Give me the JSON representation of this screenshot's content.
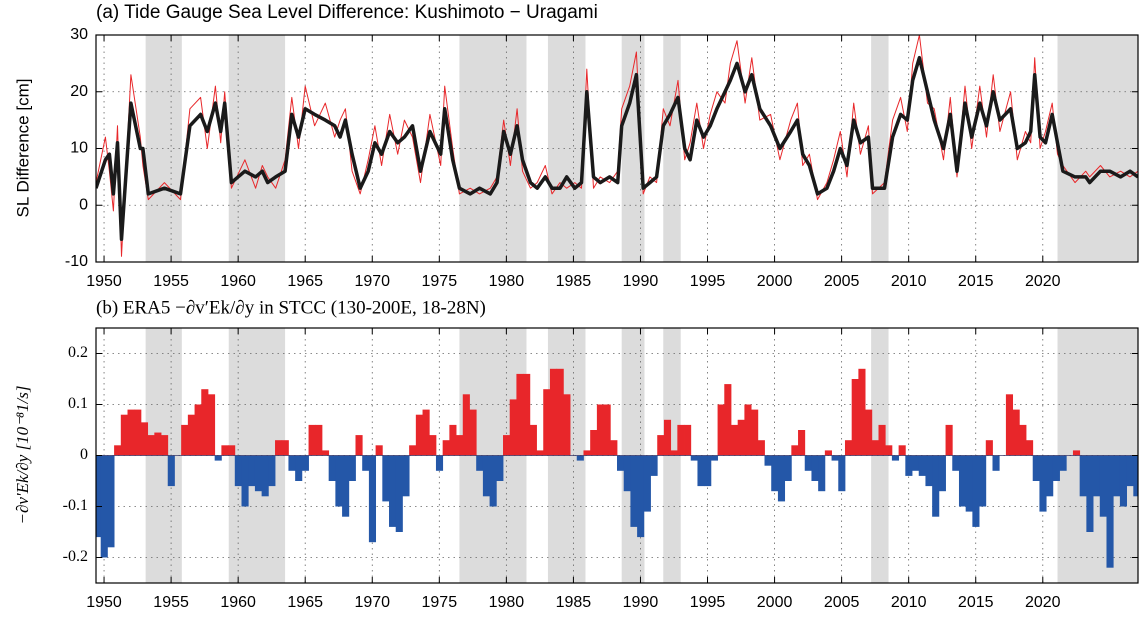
{
  "chart_data": [
    {
      "type": "line",
      "title": "(a) Tide Gauge Sea Level Difference: Kushimoto − Uragami",
      "y_label": "SL Difference [cm]",
      "xlim": [
        1949.4,
        2027.1
      ],
      "ylim": [
        -10,
        30
      ],
      "xticks": [
        1950,
        1955,
        1960,
        1965,
        1970,
        1975,
        1980,
        1985,
        1990,
        1995,
        2000,
        2005,
        2010,
        2015,
        2020
      ],
      "yticks": [
        -10,
        0,
        10,
        20,
        30
      ],
      "grid": true,
      "shade_color": "#dcdcdc",
      "shaded_periods": [
        [
          1953.1,
          1955.8
        ],
        [
          1959.3,
          1963.5
        ],
        [
          1976.5,
          1981.5
        ],
        [
          1983.1,
          1985.9
        ],
        [
          1988.6,
          1990.3
        ],
        [
          1991.7,
          1993.0
        ],
        [
          2007.2,
          2008.5
        ],
        [
          2021.1,
          2027.1
        ]
      ],
      "x": [
        1949.4,
        1950.1,
        1950.4,
        1950.7,
        1951.0,
        1951.3,
        1952.0,
        1952.7,
        1952.9,
        1953.3,
        1954.5,
        1955.7,
        1956.4,
        1957.2,
        1957.7,
        1958.3,
        1958.7,
        1959.0,
        1959.5,
        1960.5,
        1961.3,
        1961.8,
        1962.2,
        1962.8,
        1963.5,
        1964.0,
        1964.5,
        1965.0,
        1965.7,
        1966.5,
        1967.2,
        1967.6,
        1968.0,
        1968.5,
        1969.1,
        1969.7,
        1970.2,
        1970.7,
        1971.3,
        1971.9,
        1972.4,
        1973.0,
        1973.6,
        1974.3,
        1975.1,
        1975.4,
        1976.0,
        1976.5,
        1977.3,
        1978.0,
        1978.8,
        1979.3,
        1979.8,
        1980.3,
        1980.8,
        1981.2,
        1981.8,
        1982.3,
        1982.9,
        1983.4,
        1984.0,
        1984.5,
        1985.1,
        1985.6,
        1986.0,
        1986.5,
        1987.0,
        1987.7,
        1988.3,
        1988.6,
        1989.2,
        1989.7,
        1990.2,
        1990.7,
        1991.2,
        1991.7,
        1992.2,
        1992.8,
        1993.3,
        1993.7,
        1994.2,
        1994.7,
        1995.2,
        1995.7,
        1996.3,
        1996.7,
        1997.2,
        1997.8,
        1998.3,
        1998.9,
        1999.7,
        2000.4,
        2001.2,
        2001.7,
        2002.1,
        2002.6,
        2003.2,
        2003.9,
        2004.4,
        2004.9,
        2005.4,
        2005.9,
        2006.4,
        2007.0,
        2007.3,
        2008.2,
        2008.8,
        2009.4,
        2009.9,
        2010.3,
        2010.8,
        2011.4,
        2011.9,
        2012.6,
        2013.1,
        2013.6,
        2014.2,
        2014.7,
        2015.3,
        2015.8,
        2016.3,
        2016.8,
        2017.6,
        2018.1,
        2018.7,
        2019.1,
        2019.4,
        2019.8,
        2020.2,
        2020.7,
        2021.1,
        2021.5,
        2022.4,
        2023.2,
        2023.5,
        2024.3,
        2025.0,
        2025.8,
        2026.5,
        2027.1
      ],
      "series": [
        {
          "color": "#e8282b",
          "width": 1,
          "values": [
            4,
            12,
            6,
            -1,
            14,
            -9,
            23,
            12,
            7,
            1,
            4,
            1,
            17,
            19,
            10,
            21,
            11,
            20,
            3,
            8,
            3,
            7,
            5,
            3,
            8,
            19,
            10,
            21,
            14,
            18,
            12,
            15,
            17,
            6,
            2,
            8,
            14,
            7,
            16,
            9,
            15,
            12,
            4,
            16,
            7,
            21,
            10,
            2,
            3,
            2,
            3,
            5,
            15,
            7,
            17,
            6,
            3,
            4,
            7,
            2,
            4,
            3,
            4,
            3,
            24,
            3,
            5,
            4,
            6,
            17,
            21,
            27,
            2,
            5,
            4,
            17,
            14,
            22,
            8,
            11,
            18,
            10,
            16,
            20,
            18,
            25,
            29,
            18,
            26,
            15,
            16,
            8,
            15,
            18,
            7,
            9,
            1,
            4,
            8,
            13,
            5,
            18,
            9,
            14,
            2,
            4,
            15,
            19,
            13,
            25,
            30,
            18,
            17,
            8,
            19,
            5,
            21,
            10,
            21,
            12,
            23,
            13,
            20,
            8,
            13,
            11,
            26,
            10,
            13,
            18,
            9,
            7,
            4,
            6,
            5,
            7,
            5,
            6,
            5,
            6
          ]
        },
        {
          "color": "#1a1a1a",
          "width": 3.5,
          "values": [
            3,
            8,
            9,
            2,
            11,
            -6,
            18,
            10,
            10,
            2,
            3,
            2,
            14,
            16,
            13,
            18,
            13,
            18,
            4,
            6,
            5,
            6,
            4,
            5,
            6,
            16,
            12,
            17,
            16,
            15,
            14,
            12,
            15,
            9,
            3,
            6,
            11,
            9,
            13,
            11,
            12,
            14,
            6,
            13,
            9,
            17,
            8,
            3,
            2,
            3,
            2,
            4,
            13,
            9,
            14,
            8,
            4,
            3,
            5,
            3,
            3,
            5,
            3,
            4,
            20,
            5,
            4,
            5,
            4,
            14,
            18,
            23,
            3,
            4,
            5,
            14,
            16,
            19,
            10,
            8,
            15,
            12,
            14,
            17,
            20,
            22,
            25,
            20,
            23,
            17,
            14,
            10,
            13,
            15,
            9,
            7,
            2,
            3,
            6,
            10,
            7,
            15,
            11,
            12,
            3,
            3,
            12,
            16,
            15,
            22,
            26,
            20,
            15,
            10,
            16,
            6,
            18,
            12,
            18,
            14,
            20,
            15,
            17,
            10,
            11,
            13,
            23,
            12,
            11,
            16,
            11,
            6,
            5,
            5,
            4,
            6,
            6,
            5,
            6,
            5
          ]
        }
      ]
    },
    {
      "type": "area",
      "title": "(b) ERA5 −∂v′Ek/∂y in STCC (130-200E, 18-28N)",
      "y_label": "−∂v′Ek/∂y [10⁻⁸1/s]",
      "xlim": [
        1949.4,
        2027.1
      ],
      "ylim": [
        -0.25,
        0.25
      ],
      "xticks": [
        1950,
        1955,
        1960,
        1965,
        1970,
        1975,
        1980,
        1985,
        1990,
        1995,
        2000,
        2005,
        2010,
        2015,
        2020
      ],
      "yticks": [
        -0.2,
        -0.1,
        0,
        0.1,
        0.2
      ],
      "grid": true,
      "shade_color": "#dcdcdc",
      "positive_color": "#e8262a",
      "negative_color": "#2457a8",
      "shaded_periods": [
        [
          1953.1,
          1955.8
        ],
        [
          1959.3,
          1963.5
        ],
        [
          1976.5,
          1981.5
        ],
        [
          1983.1,
          1985.9
        ],
        [
          1988.6,
          1990.3
        ],
        [
          1991.7,
          1993.0
        ],
        [
          2007.2,
          2008.5
        ],
        [
          2021.1,
          2027.1
        ]
      ],
      "x": [
        1949.5,
        1950.0,
        1950.5,
        1951.0,
        1951.5,
        1952.0,
        1952.5,
        1953.0,
        1953.5,
        1954.0,
        1954.5,
        1955.0,
        1955.5,
        1956.0,
        1956.5,
        1957.0,
        1957.5,
        1958.0,
        1958.5,
        1959.0,
        1959.5,
        1960.0,
        1960.5,
        1961.0,
        1961.5,
        1962.0,
        1962.5,
        1963.0,
        1963.5,
        1964.0,
        1964.5,
        1965.0,
        1965.5,
        1966.0,
        1966.5,
        1967.0,
        1967.5,
        1968.0,
        1968.5,
        1969.0,
        1969.5,
        1970.0,
        1970.5,
        1971.0,
        1971.5,
        1972.0,
        1972.5,
        1973.0,
        1973.5,
        1974.0,
        1974.5,
        1975.0,
        1975.5,
        1976.0,
        1976.5,
        1977.0,
        1977.5,
        1978.0,
        1978.5,
        1979.0,
        1979.5,
        1980.0,
        1980.5,
        1981.0,
        1981.5,
        1982.0,
        1982.5,
        1983.0,
        1983.5,
        1984.0,
        1984.5,
        1985.0,
        1985.5,
        1986.0,
        1986.5,
        1987.0,
        1987.5,
        1988.0,
        1988.5,
        1989.0,
        1989.5,
        1990.0,
        1990.5,
        1991.0,
        1991.5,
        1992.0,
        1992.5,
        1993.0,
        1993.5,
        1994.0,
        1994.5,
        1995.0,
        1995.5,
        1996.0,
        1996.5,
        1997.0,
        1997.5,
        1998.0,
        1998.5,
        1999.0,
        1999.5,
        2000.0,
        2000.5,
        2001.0,
        2001.5,
        2002.0,
        2002.5,
        2003.0,
        2003.5,
        2004.0,
        2004.5,
        2005.0,
        2005.5,
        2006.0,
        2006.5,
        2007.0,
        2007.5,
        2008.0,
        2008.5,
        2009.0,
        2009.5,
        2010.0,
        2010.5,
        2011.0,
        2011.5,
        2012.0,
        2012.5,
        2013.0,
        2013.5,
        2014.0,
        2014.5,
        2015.0,
        2015.5,
        2016.0,
        2016.5,
        2017.0,
        2017.5,
        2018.0,
        2018.5,
        2019.0,
        2019.5,
        2020.0,
        2020.5,
        2021.0,
        2021.5,
        2022.0,
        2022.5,
        2023.0,
        2023.5,
        2024.0,
        2024.5,
        2025.0,
        2025.5,
        2026.0,
        2026.5,
        2027.0
      ],
      "values": [
        -0.16,
        -0.2,
        -0.18,
        0.02,
        0.08,
        0.09,
        0.09,
        0.065,
        0.04,
        0.045,
        0.04,
        -0.06,
        0.0,
        0.06,
        0.08,
        0.1,
        0.13,
        0.12,
        -0.01,
        0.02,
        0.02,
        -0.06,
        -0.1,
        -0.06,
        -0.07,
        -0.08,
        -0.06,
        0.03,
        0.03,
        -0.03,
        -0.05,
        -0.03,
        0.06,
        0.06,
        0.01,
        -0.05,
        -0.1,
        -0.12,
        -0.05,
        0.04,
        -0.03,
        -0.17,
        0.02,
        -0.09,
        -0.14,
        -0.15,
        -0.08,
        0.02,
        0.08,
        0.09,
        0.04,
        -0.03,
        0.03,
        0.06,
        0.04,
        0.12,
        0.09,
        -0.03,
        -0.08,
        -0.1,
        -0.05,
        0.04,
        0.11,
        0.16,
        0.16,
        0.06,
        0.01,
        0.13,
        0.17,
        0.17,
        0.12,
        0.0,
        -0.01,
        0.01,
        0.05,
        0.1,
        0.1,
        0.03,
        -0.03,
        -0.07,
        -0.14,
        -0.16,
        -0.11,
        -0.04,
        0.04,
        0.07,
        0.01,
        0.06,
        0.06,
        -0.01,
        -0.06,
        -0.06,
        -0.01,
        0.1,
        0.14,
        0.06,
        0.07,
        0.1,
        0.09,
        0.03,
        -0.02,
        -0.07,
        -0.09,
        -0.05,
        0.02,
        0.05,
        -0.03,
        -0.05,
        -0.07,
        0.01,
        -0.01,
        -0.07,
        0.03,
        0.15,
        0.17,
        0.09,
        0.03,
        0.06,
        0.02,
        -0.01,
        0.02,
        -0.04,
        -0.03,
        -0.04,
        -0.06,
        -0.12,
        -0.07,
        0.06,
        -0.03,
        -0.1,
        -0.11,
        -0.14,
        -0.1,
        0.03,
        -0.03,
        0.0,
        0.12,
        0.09,
        0.06,
        0.03,
        -0.05,
        -0.11,
        -0.08,
        -0.05,
        -0.03,
        0.0,
        0.01,
        -0.08,
        -0.15,
        -0.08,
        -0.12,
        -0.22,
        -0.08,
        -0.1,
        -0.06,
        -0.08
      ]
    }
  ]
}
